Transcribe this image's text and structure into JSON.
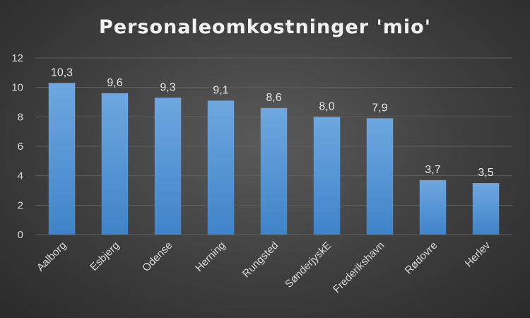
{
  "chart_data": {
    "type": "bar",
    "title": "Personaleomkostninger 'mio'",
    "categories": [
      "Aalborg",
      "Esbjerg",
      "Odense",
      "Herning",
      "Rungsted",
      "SønderjyskE",
      "Frederikshavn",
      "Rødovre",
      "Herlev"
    ],
    "values": [
      10.3,
      9.6,
      9.3,
      9.1,
      8.6,
      8.0,
      7.9,
      3.7,
      3.5
    ],
    "data_labels": [
      "10,3",
      "9,6",
      "9,3",
      "9,1",
      "8,6",
      "8,0",
      "7,9",
      "3,7",
      "3,5"
    ],
    "ylim": [
      0,
      12
    ],
    "yticks": [
      0,
      2,
      4,
      6,
      8,
      10,
      12
    ],
    "grid": true,
    "legend": "none",
    "colors": {
      "bar_top": "#6ea7e0",
      "bar_bottom": "#3f84c8",
      "grid": "#5f5f5f",
      "text": "#d9d9d9"
    }
  }
}
